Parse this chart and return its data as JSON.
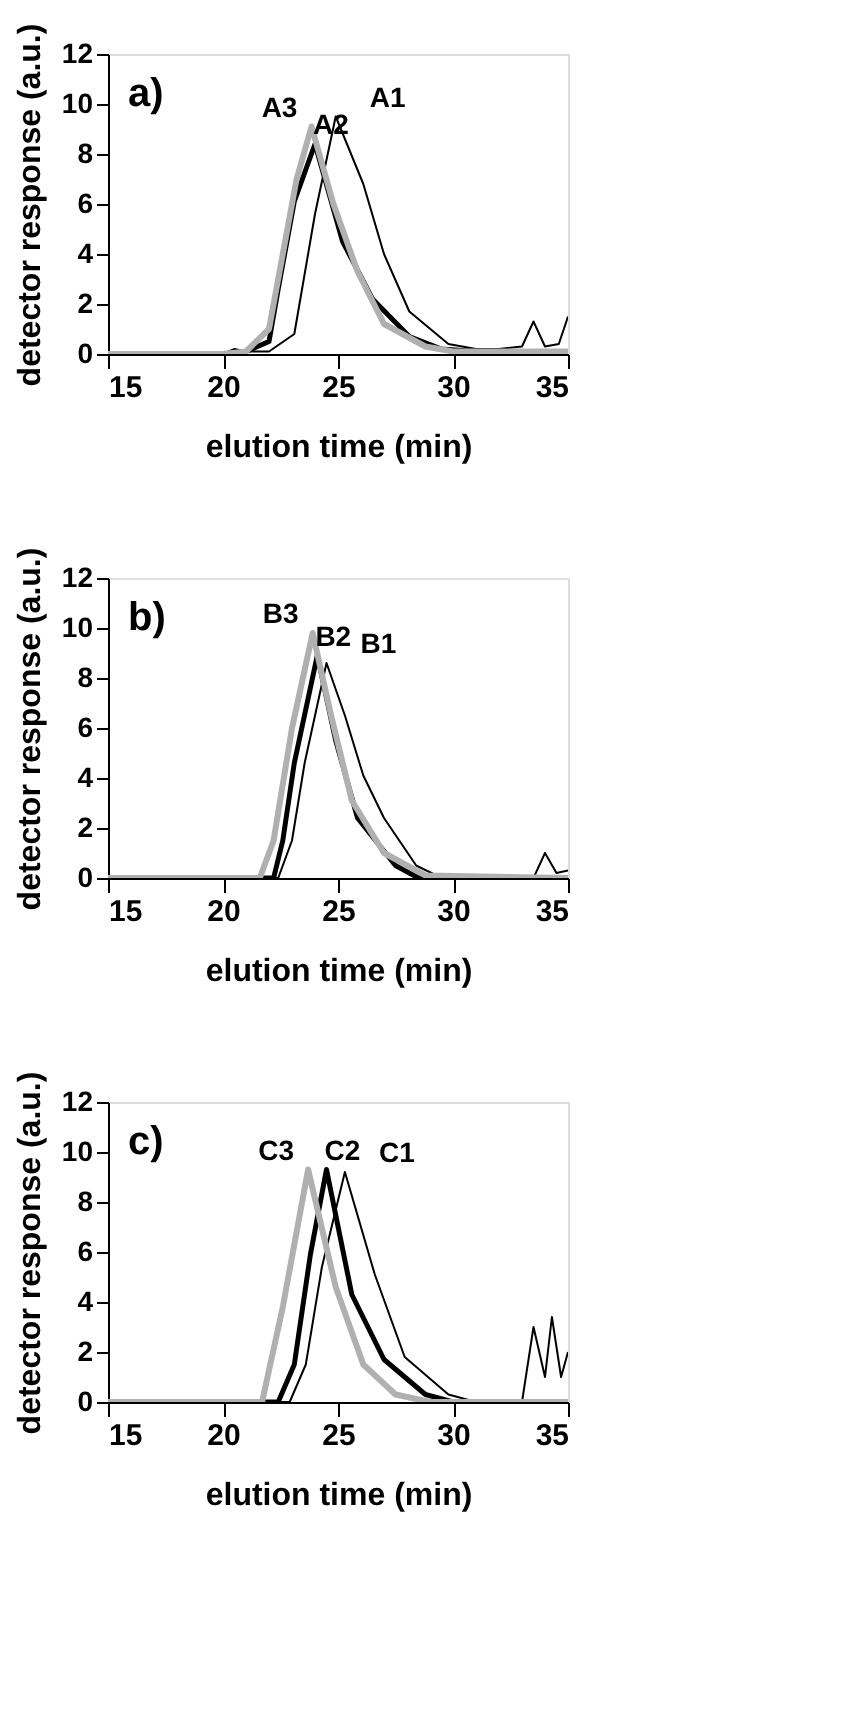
{
  "chart_data": [
    {
      "type": "line",
      "xlabel": "elution time (min)",
      "ylabel": "detector response (a.u.)",
      "xlim": [
        15,
        35
      ],
      "ylim": [
        0,
        12
      ],
      "xticks": [
        15,
        20,
        25,
        30,
        35
      ],
      "yticks": [
        0,
        2,
        4,
        6,
        8,
        10,
        12
      ],
      "grid": false,
      "annotations": [
        "a)"
      ],
      "series": [
        {
          "name": "A1",
          "color": "#000000",
          "x": [
            15,
            20,
            20.5,
            21,
            22,
            23.1,
            24,
            24.9,
            26.1,
            27,
            28.1,
            29.8,
            31,
            32,
            33,
            33.5,
            34,
            34.6,
            35
          ],
          "values": [
            0,
            0,
            0.2,
            0.1,
            0.1,
            0.8,
            5.6,
            9.5,
            6.8,
            4,
            1.7,
            0.4,
            0.2,
            0.2,
            0.3,
            1.3,
            0.3,
            0.4,
            1.5
          ]
        },
        {
          "name": "A2",
          "color": "#000000",
          "x": [
            15,
            20,
            21,
            22,
            22.4,
            23.1,
            24,
            25.2,
            26.5,
            28.1,
            29.5,
            31,
            35
          ],
          "values": [
            0,
            0,
            0.1,
            0.5,
            2.6,
            6.1,
            8.4,
            4.5,
            2.2,
            0.7,
            0.2,
            0.1,
            0.1
          ]
        },
        {
          "name": "A3",
          "color": "#b0b0b0",
          "x": [
            15,
            20,
            21,
            22,
            22.6,
            23.2,
            23.85,
            24.8,
            25.85,
            27,
            28.8,
            30,
            35
          ],
          "values": [
            0,
            0,
            0.1,
            1,
            4,
            7,
            9.1,
            6,
            3.3,
            1.2,
            0.3,
            0.1,
            0.1
          ]
        }
      ]
    },
    {
      "type": "line",
      "xlabel": "elution time (min)",
      "ylabel": "detector response (a.u.)",
      "xlim": [
        15,
        35
      ],
      "ylim": [
        0,
        12
      ],
      "xticks": [
        15,
        20,
        25,
        30,
        35
      ],
      "yticks": [
        0,
        2,
        4,
        6,
        8,
        10,
        12
      ],
      "grid": false,
      "annotations": [
        "b)"
      ],
      "series": [
        {
          "name": "B1",
          "color": "#000000",
          "x": [
            15,
            22.4,
            23,
            23.55,
            24.5,
            25.3,
            26.1,
            27,
            28.4,
            29.5,
            33.5,
            34,
            34.5,
            35
          ],
          "values": [
            0,
            0,
            1.5,
            4.6,
            8.6,
            6.5,
            4.1,
            2.4,
            0.5,
            0,
            0,
            1,
            0.2,
            0.3
          ]
        },
        {
          "name": "B2",
          "color": "#000000",
          "x": [
            15,
            22.2,
            22.6,
            23.1,
            24.1,
            24.9,
            25.85,
            27.5,
            28.5,
            35
          ],
          "values": [
            0,
            0,
            1.5,
            4.6,
            8.9,
            5.5,
            2.4,
            0.5,
            0,
            0
          ]
        },
        {
          "name": "B3",
          "color": "#b0b0b0",
          "x": [
            15,
            21.6,
            22.2,
            23,
            23.9,
            24.7,
            25.6,
            27,
            28.8,
            35
          ],
          "values": [
            0,
            0,
            1.5,
            6,
            9.8,
            6.5,
            3.1,
            1,
            0.1,
            0
          ]
        }
      ]
    },
    {
      "type": "line",
      "xlabel": "elution time (min)",
      "ylabel": "detector response (a.u.)",
      "xlim": [
        15,
        35
      ],
      "ylim": [
        0,
        12
      ],
      "xticks": [
        15,
        20,
        25,
        30,
        35
      ],
      "yticks": [
        0,
        2,
        4,
        6,
        8,
        10,
        12
      ],
      "grid": false,
      "annotations": [
        "c)"
      ],
      "series": [
        {
          "name": "C1",
          "color": "#000000",
          "x": [
            15,
            22.9,
            23.6,
            24.3,
            25.3,
            26.6,
            27.9,
            29.8,
            31,
            33,
            33.5,
            34,
            34.3,
            34.7,
            35
          ],
          "values": [
            0,
            0,
            1.5,
            5.4,
            9.2,
            5.1,
            1.8,
            0.3,
            0,
            0,
            3,
            1,
            3.4,
            1,
            2
          ]
        },
        {
          "name": "C2",
          "color": "#000000",
          "x": [
            15,
            22.4,
            23.1,
            23.8,
            24.5,
            25.6,
            27,
            28.8,
            30,
            35
          ],
          "values": [
            0,
            0,
            1.5,
            5.9,
            9.3,
            4.3,
            1.7,
            0.3,
            0,
            0
          ]
        },
        {
          "name": "C3",
          "color": "#b0b0b0",
          "x": [
            15,
            21.7,
            22.6,
            23.7,
            24.9,
            26.1,
            27.5,
            29,
            35
          ],
          "values": [
            0,
            0,
            3.8,
            9.3,
            4.6,
            1.5,
            0.3,
            0,
            0
          ]
        }
      ]
    }
  ]
}
